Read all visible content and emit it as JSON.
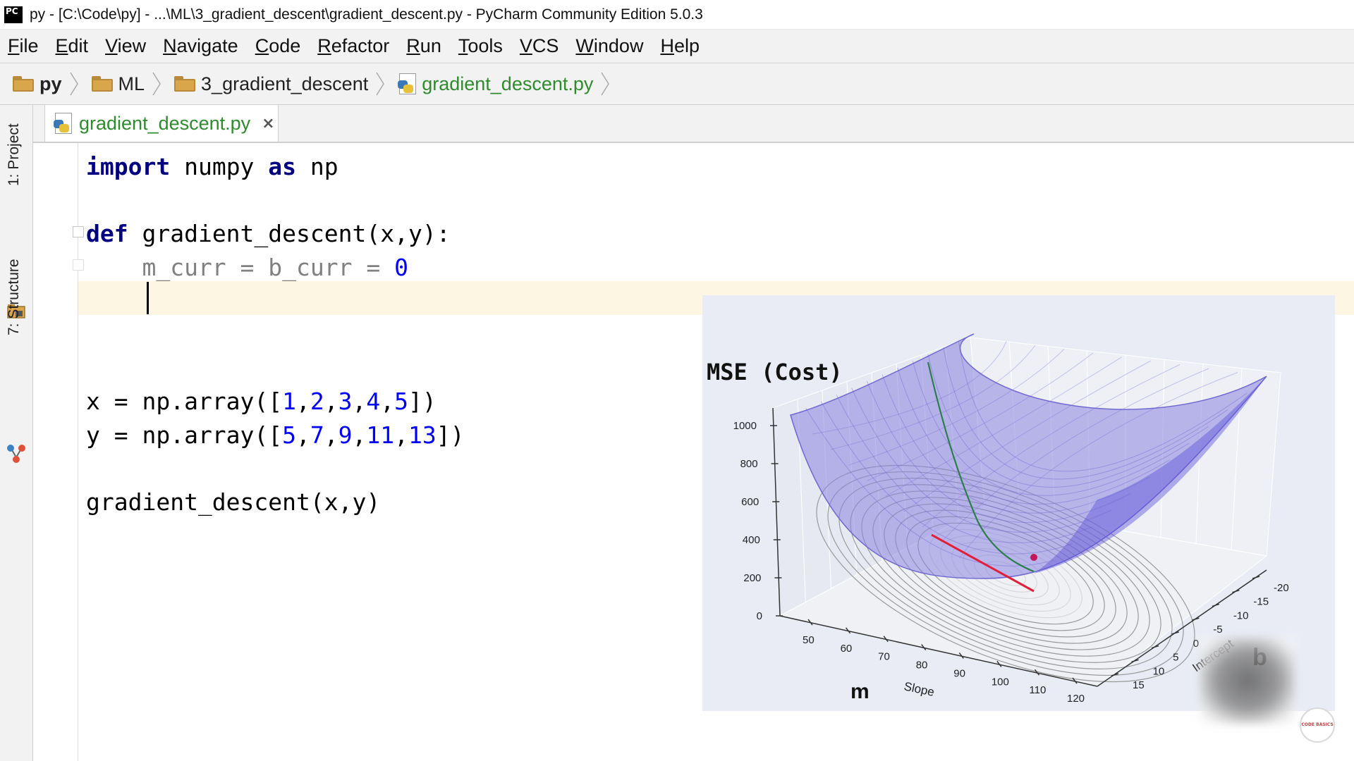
{
  "window": {
    "title": "py - [C:\\Code\\py] - ...\\ML\\3_gradient_descent\\gradient_descent.py - PyCharm Community Edition 5.0.3",
    "app_icon_text": "PC"
  },
  "menu": [
    "File",
    "Edit",
    "View",
    "Navigate",
    "Code",
    "Refactor",
    "Run",
    "Tools",
    "VCS",
    "Window",
    "Help"
  ],
  "breadcrumbs": [
    {
      "label": "py",
      "icon": "folder-icon"
    },
    {
      "label": "ML",
      "icon": "module-folder-icon"
    },
    {
      "label": "3_gradient_descent",
      "icon": "folder-icon"
    },
    {
      "label": "gradient_descent.py",
      "icon": "python-file-icon"
    }
  ],
  "tool_windows": {
    "project": "1: Project",
    "structure": "7: Structure"
  },
  "tabs": [
    {
      "label": "gradient_descent.py",
      "close": "×",
      "active": true
    }
  ],
  "editor": {
    "lines": [
      [
        {
          "t": "import",
          "c": "kw"
        },
        {
          "t": " numpy ",
          "c": ""
        },
        {
          "t": "as",
          "c": "kw"
        },
        {
          "t": " np",
          "c": ""
        }
      ],
      [],
      [
        {
          "t": "def",
          "c": "kw"
        },
        {
          "t": " gradient_descent(x,y):",
          "c": ""
        }
      ],
      [
        {
          "t": "    m_curr = b_curr = ",
          "c": "gray"
        },
        {
          "t": "0",
          "c": "num"
        }
      ],
      [],
      [],
      [],
      [
        {
          "t": "x = np.array([",
          "c": ""
        },
        {
          "t": "1",
          "c": "num"
        },
        {
          "t": ",",
          "c": ""
        },
        {
          "t": "2",
          "c": "num"
        },
        {
          "t": ",",
          "c": ""
        },
        {
          "t": "3",
          "c": "num"
        },
        {
          "t": ",",
          "c": ""
        },
        {
          "t": "4",
          "c": "num"
        },
        {
          "t": ",",
          "c": ""
        },
        {
          "t": "5",
          "c": "num"
        },
        {
          "t": "])",
          "c": ""
        }
      ],
      [
        {
          "t": "y = np.array([",
          "c": ""
        },
        {
          "t": "5",
          "c": "num"
        },
        {
          "t": ",",
          "c": ""
        },
        {
          "t": "7",
          "c": "num"
        },
        {
          "t": ",",
          "c": ""
        },
        {
          "t": "9",
          "c": "num"
        },
        {
          "t": ",",
          "c": ""
        },
        {
          "t": "11",
          "c": "num"
        },
        {
          "t": ",",
          "c": ""
        },
        {
          "t": "13",
          "c": "num"
        },
        {
          "t": "])",
          "c": ""
        }
      ],
      [],
      [
        {
          "t": "gradient_descent(x,y)",
          "c": ""
        }
      ]
    ]
  },
  "chart_data": {
    "type": "surface3d",
    "title": "MSE (Cost)",
    "z_ticks": [
      "0",
      "200",
      "400",
      "600",
      "800",
      "1000"
    ],
    "x_label": "Slope",
    "x_symbol": "m",
    "x_ticks": [
      "50",
      "60",
      "70",
      "80",
      "90",
      "100",
      "110",
      "120"
    ],
    "y_label": "Intercept",
    "y_symbol": "b",
    "y_ticks": [
      "15",
      "10",
      "5",
      "0",
      "-5",
      "-10",
      "-15",
      "-20"
    ],
    "surface_color": "#8a84e0",
    "path_colors": {
      "descent_path": "#2e7d4f",
      "tangent": "#e0203a",
      "point": "#c2185b"
    }
  },
  "logo_text": "CODE BASICS"
}
